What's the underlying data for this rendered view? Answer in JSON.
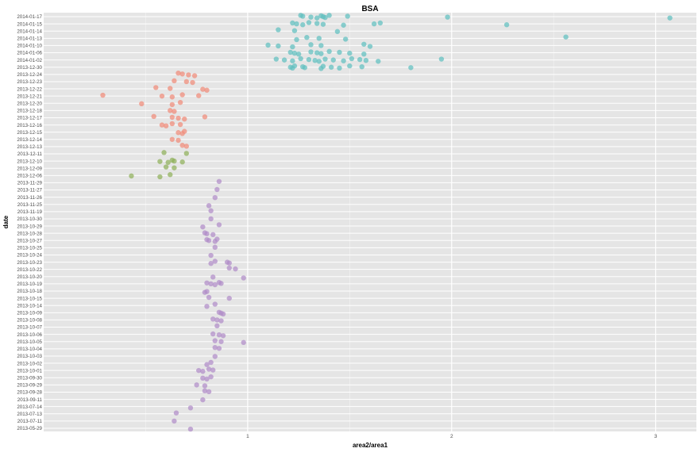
{
  "chart_data": {
    "type": "scatter",
    "title": "BSA",
    "xlabel": "area2/area1",
    "ylabel": "date",
    "xlim": [
      0.0,
      3.2
    ],
    "x_ticks": [
      1,
      2,
      3
    ],
    "grid": true,
    "legend": "none",
    "colors": {
      "panel_bg": "#e5e5e5",
      "grid": "#ffffff",
      "text": "#000000",
      "tick_text": "#4d4d4d"
    },
    "categories": [
      "2014-01-17",
      "2014-01-15",
      "2014-01-14",
      "2014-01-13",
      "2014-01-10",
      "2014-01-06",
      "2014-01-02",
      "2013-12-30",
      "2013-12-24",
      "2013-12-23",
      "2013-12-22",
      "2013-12-21",
      "2013-12-20",
      "2013-12-18",
      "2013-12-17",
      "2013-12-16",
      "2013-12-15",
      "2013-12-14",
      "2013-12-13",
      "2013-12-11",
      "2013-12-10",
      "2013-12-09",
      "2013-12-06",
      "2013-11-29",
      "2013-11-27",
      "2013-11-26",
      "2013-11-25",
      "2013-11-19",
      "2013-10-30",
      "2013-10-29",
      "2013-10-28",
      "2013-10-27",
      "2013-10-25",
      "2013-10-24",
      "2013-10-23",
      "2013-10-22",
      "2013-10-20",
      "2013-10-19",
      "2013-10-18",
      "2013-10-15",
      "2013-10-14",
      "2013-10-09",
      "2013-10-08",
      "2013-10-07",
      "2013-10-06",
      "2013-10-05",
      "2013-10-04",
      "2013-10-03",
      "2013-10-02",
      "2013-10-01",
      "2013-09-30",
      "2013-09-29",
      "2013-09-28",
      "2013-09-11",
      "2013-07-14",
      "2013-07-13",
      "2013-07-11",
      "2013-05-29"
    ],
    "series": [
      {
        "color": "#5fbfbf",
        "points": [
          [
            "2014-01-17",
            1.26
          ],
          [
            "2014-01-17",
            1.27
          ],
          [
            "2014-01-17",
            1.31
          ],
          [
            "2014-01-17",
            1.34
          ],
          [
            "2014-01-17",
            1.36
          ],
          [
            "2014-01-17",
            1.37
          ],
          [
            "2014-01-17",
            1.38
          ],
          [
            "2014-01-17",
            1.4
          ],
          [
            "2014-01-17",
            1.49
          ],
          [
            "2014-01-17",
            1.98
          ],
          [
            "2014-01-17",
            3.07
          ],
          [
            "2014-01-15",
            1.22
          ],
          [
            "2014-01-15",
            1.24
          ],
          [
            "2014-01-15",
            1.27
          ],
          [
            "2014-01-15",
            1.3
          ],
          [
            "2014-01-15",
            1.34
          ],
          [
            "2014-01-15",
            1.37
          ],
          [
            "2014-01-15",
            1.47
          ],
          [
            "2014-01-15",
            1.65
          ],
          [
            "2014-01-15",
            1.62
          ],
          [
            "2014-01-15",
            2.27
          ],
          [
            "2014-01-14",
            1.15
          ],
          [
            "2014-01-14",
            1.23
          ],
          [
            "2014-01-14",
            1.44
          ],
          [
            "2014-01-13",
            1.24
          ],
          [
            "2014-01-13",
            1.29
          ],
          [
            "2014-01-13",
            1.35
          ],
          [
            "2014-01-13",
            1.48
          ],
          [
            "2014-01-13",
            2.56
          ],
          [
            "2014-01-10",
            1.1
          ],
          [
            "2014-01-10",
            1.15
          ],
          [
            "2014-01-10",
            1.22
          ],
          [
            "2014-01-10",
            1.31
          ],
          [
            "2014-01-10",
            1.36
          ],
          [
            "2014-01-10",
            1.6
          ],
          [
            "2014-01-10",
            1.57
          ],
          [
            "2014-01-06",
            1.21
          ],
          [
            "2014-01-06",
            1.23
          ],
          [
            "2014-01-06",
            1.25
          ],
          [
            "2014-01-06",
            1.31
          ],
          [
            "2014-01-06",
            1.34
          ],
          [
            "2014-01-06",
            1.36
          ],
          [
            "2014-01-06",
            1.4
          ],
          [
            "2014-01-06",
            1.45
          ],
          [
            "2014-01-06",
            1.5
          ],
          [
            "2014-01-06",
            1.57
          ],
          [
            "2014-01-02",
            1.14
          ],
          [
            "2014-01-02",
            1.18
          ],
          [
            "2014-01-02",
            1.22
          ],
          [
            "2014-01-02",
            1.26
          ],
          [
            "2014-01-02",
            1.3
          ],
          [
            "2014-01-02",
            1.33
          ],
          [
            "2014-01-02",
            1.35
          ],
          [
            "2014-01-02",
            1.38
          ],
          [
            "2014-01-02",
            1.42
          ],
          [
            "2014-01-02",
            1.47
          ],
          [
            "2014-01-02",
            1.51
          ],
          [
            "2014-01-02",
            1.55
          ],
          [
            "2014-01-02",
            1.58
          ],
          [
            "2014-01-02",
            1.64
          ],
          [
            "2014-01-02",
            1.95
          ],
          [
            "2013-12-30",
            1.21
          ],
          [
            "2013-12-30",
            1.22
          ],
          [
            "2013-12-30",
            1.23
          ],
          [
            "2013-12-30",
            1.27
          ],
          [
            "2013-12-30",
            1.28
          ],
          [
            "2013-12-30",
            1.36
          ],
          [
            "2013-12-30",
            1.37
          ],
          [
            "2013-12-30",
            1.41
          ],
          [
            "2013-12-30",
            1.45
          ],
          [
            "2013-12-30",
            1.5
          ],
          [
            "2013-12-30",
            1.56
          ],
          [
            "2013-12-30",
            1.8
          ]
        ]
      },
      {
        "color": "#f08a78",
        "points": [
          [
            "2013-12-24",
            0.66
          ],
          [
            "2013-12-24",
            0.68
          ],
          [
            "2013-12-24",
            0.71
          ],
          [
            "2013-12-24",
            0.74
          ],
          [
            "2013-12-23",
            0.64
          ],
          [
            "2013-12-23",
            0.7
          ],
          [
            "2013-12-23",
            0.73
          ],
          [
            "2013-12-22",
            0.55
          ],
          [
            "2013-12-22",
            0.62
          ],
          [
            "2013-12-22",
            0.78
          ],
          [
            "2013-12-22",
            0.8
          ],
          [
            "2013-12-21",
            0.29
          ],
          [
            "2013-12-21",
            0.58
          ],
          [
            "2013-12-21",
            0.63
          ],
          [
            "2013-12-21",
            0.68
          ],
          [
            "2013-12-21",
            0.76
          ],
          [
            "2013-12-20",
            0.48
          ],
          [
            "2013-12-20",
            0.63
          ],
          [
            "2013-12-20",
            0.67
          ],
          [
            "2013-12-18",
            0.62
          ],
          [
            "2013-12-18",
            0.64
          ],
          [
            "2013-12-17",
            0.54
          ],
          [
            "2013-12-17",
            0.63
          ],
          [
            "2013-12-17",
            0.66
          ],
          [
            "2013-12-17",
            0.69
          ],
          [
            "2013-12-17",
            0.79
          ],
          [
            "2013-12-16",
            0.58
          ],
          [
            "2013-12-16",
            0.6
          ],
          [
            "2013-12-16",
            0.63
          ],
          [
            "2013-12-16",
            0.67
          ],
          [
            "2013-12-15",
            0.66
          ],
          [
            "2013-12-15",
            0.68
          ],
          [
            "2013-12-15",
            0.69
          ],
          [
            "2013-12-14",
            0.63
          ],
          [
            "2013-12-14",
            0.66
          ],
          [
            "2013-12-13",
            0.68
          ],
          [
            "2013-12-13",
            0.7
          ]
        ]
      },
      {
        "color": "#8fb05a",
        "points": [
          [
            "2013-12-11",
            0.59
          ],
          [
            "2013-12-11",
            0.7
          ],
          [
            "2013-12-10",
            0.57
          ],
          [
            "2013-12-10",
            0.61
          ],
          [
            "2013-12-10",
            0.63
          ],
          [
            "2013-12-10",
            0.64
          ],
          [
            "2013-12-10",
            0.68
          ],
          [
            "2013-12-09",
            0.6
          ],
          [
            "2013-12-09",
            0.64
          ],
          [
            "2013-12-06",
            0.43
          ],
          [
            "2013-12-06",
            0.57
          ],
          [
            "2013-12-06",
            0.62
          ]
        ]
      },
      {
        "color": "#b08cc7",
        "points": [
          [
            "2013-11-29",
            0.86
          ],
          [
            "2013-11-27",
            0.85
          ],
          [
            "2013-11-26",
            0.84
          ],
          [
            "2013-11-25",
            0.81
          ],
          [
            "2013-11-19",
            0.82
          ],
          [
            "2013-10-30",
            0.82
          ],
          [
            "2013-10-29",
            0.78
          ],
          [
            "2013-10-29",
            0.86
          ],
          [
            "2013-10-28",
            0.79
          ],
          [
            "2013-10-28",
            0.8
          ],
          [
            "2013-10-28",
            0.83
          ],
          [
            "2013-10-27",
            0.8
          ],
          [
            "2013-10-27",
            0.81
          ],
          [
            "2013-10-27",
            0.84
          ],
          [
            "2013-10-27",
            0.85
          ],
          [
            "2013-10-25",
            0.84
          ],
          [
            "2013-10-24",
            0.82
          ],
          [
            "2013-10-23",
            0.82
          ],
          [
            "2013-10-23",
            0.84
          ],
          [
            "2013-10-23",
            0.9
          ],
          [
            "2013-10-23",
            0.91
          ],
          [
            "2013-10-22",
            0.91
          ],
          [
            "2013-10-22",
            0.94
          ],
          [
            "2013-10-20",
            0.83
          ],
          [
            "2013-10-20",
            0.98
          ],
          [
            "2013-10-19",
            0.8
          ],
          [
            "2013-10-19",
            0.82
          ],
          [
            "2013-10-19",
            0.84
          ],
          [
            "2013-10-19",
            0.86
          ],
          [
            "2013-10-19",
            0.87
          ],
          [
            "2013-10-18",
            0.8
          ],
          [
            "2013-10-18",
            0.79
          ],
          [
            "2013-10-15",
            0.81
          ],
          [
            "2013-10-15",
            0.91
          ],
          [
            "2013-10-14",
            0.8
          ],
          [
            "2013-10-14",
            0.84
          ],
          [
            "2013-10-09",
            0.86
          ],
          [
            "2013-10-09",
            0.87
          ],
          [
            "2013-10-09",
            0.88
          ],
          [
            "2013-10-08",
            0.83
          ],
          [
            "2013-10-08",
            0.85
          ],
          [
            "2013-10-08",
            0.87
          ],
          [
            "2013-10-07",
            0.85
          ],
          [
            "2013-10-06",
            0.83
          ],
          [
            "2013-10-06",
            0.86
          ],
          [
            "2013-10-06",
            0.88
          ],
          [
            "2013-10-05",
            0.84
          ],
          [
            "2013-10-05",
            0.87
          ],
          [
            "2013-10-05",
            0.98
          ],
          [
            "2013-10-04",
            0.84
          ],
          [
            "2013-10-04",
            0.86
          ],
          [
            "2013-10-03",
            0.84
          ],
          [
            "2013-10-02",
            0.8
          ],
          [
            "2013-10-02",
            0.82
          ],
          [
            "2013-10-01",
            0.76
          ],
          [
            "2013-10-01",
            0.78
          ],
          [
            "2013-10-01",
            0.81
          ],
          [
            "2013-10-01",
            0.83
          ],
          [
            "2013-09-30",
            0.78
          ],
          [
            "2013-09-30",
            0.8
          ],
          [
            "2013-09-30",
            0.82
          ],
          [
            "2013-09-29",
            0.75
          ],
          [
            "2013-09-29",
            0.79
          ],
          [
            "2013-09-28",
            0.79
          ],
          [
            "2013-09-28",
            0.81
          ],
          [
            "2013-09-11",
            0.78
          ],
          [
            "2013-07-14",
            0.72
          ],
          [
            "2013-07-13",
            0.65
          ],
          [
            "2013-07-11",
            0.64
          ],
          [
            "2013-05-29",
            0.72
          ]
        ]
      }
    ]
  }
}
